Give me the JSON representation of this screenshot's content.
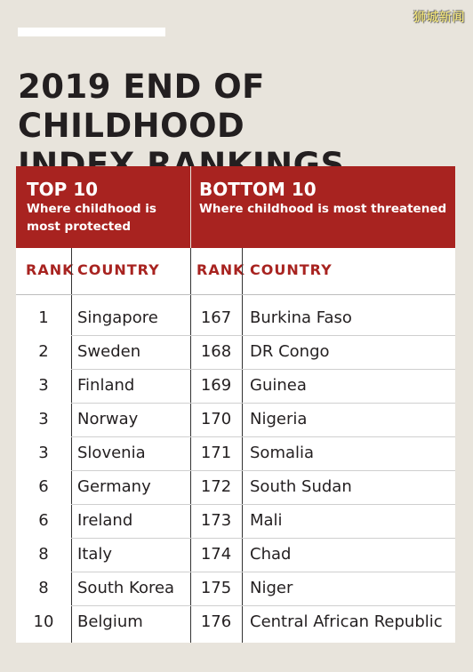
{
  "watermark": "狮城新闻",
  "title": {
    "line1": "2019 END OF CHILDHOOD",
    "line2": "INDEX RANKINGS"
  },
  "top": {
    "heading": "TOP 10",
    "subheading_line1": "Where childhood is",
    "subheading_line2": "most protected"
  },
  "bottom": {
    "heading": "BOTTOM 10",
    "subheading": "Where childhood is most threatened"
  },
  "columns": {
    "rank": "RANK",
    "country": "COUNTRY"
  },
  "colors": {
    "header_red": "#a82320",
    "background": "#e8e4dc"
  },
  "rows": [
    {
      "top_rank": "1",
      "top_country": "Singapore",
      "bottom_rank": "167",
      "bottom_country": "Burkina Faso"
    },
    {
      "top_rank": "2",
      "top_country": "Sweden",
      "bottom_rank": "168",
      "bottom_country": "DR Congo"
    },
    {
      "top_rank": "3",
      "top_country": "Finland",
      "bottom_rank": "169",
      "bottom_country": "Guinea"
    },
    {
      "top_rank": "3",
      "top_country": "Norway",
      "bottom_rank": "170",
      "bottom_country": "Nigeria"
    },
    {
      "top_rank": "3",
      "top_country": "Slovenia",
      "bottom_rank": "171",
      "bottom_country": "Somalia"
    },
    {
      "top_rank": "6",
      "top_country": "Germany",
      "bottom_rank": "172",
      "bottom_country": "South Sudan"
    },
    {
      "top_rank": "6",
      "top_country": "Ireland",
      "bottom_rank": "173",
      "bottom_country": "Mali"
    },
    {
      "top_rank": "8",
      "top_country": "Italy",
      "bottom_rank": "174",
      "bottom_country": "Chad"
    },
    {
      "top_rank": "8",
      "top_country": "South Korea",
      "bottom_rank": "175",
      "bottom_country": "Niger"
    },
    {
      "top_rank": "10",
      "top_country": "Belgium",
      "bottom_rank": "176",
      "bottom_country": "Central African Republic"
    }
  ]
}
